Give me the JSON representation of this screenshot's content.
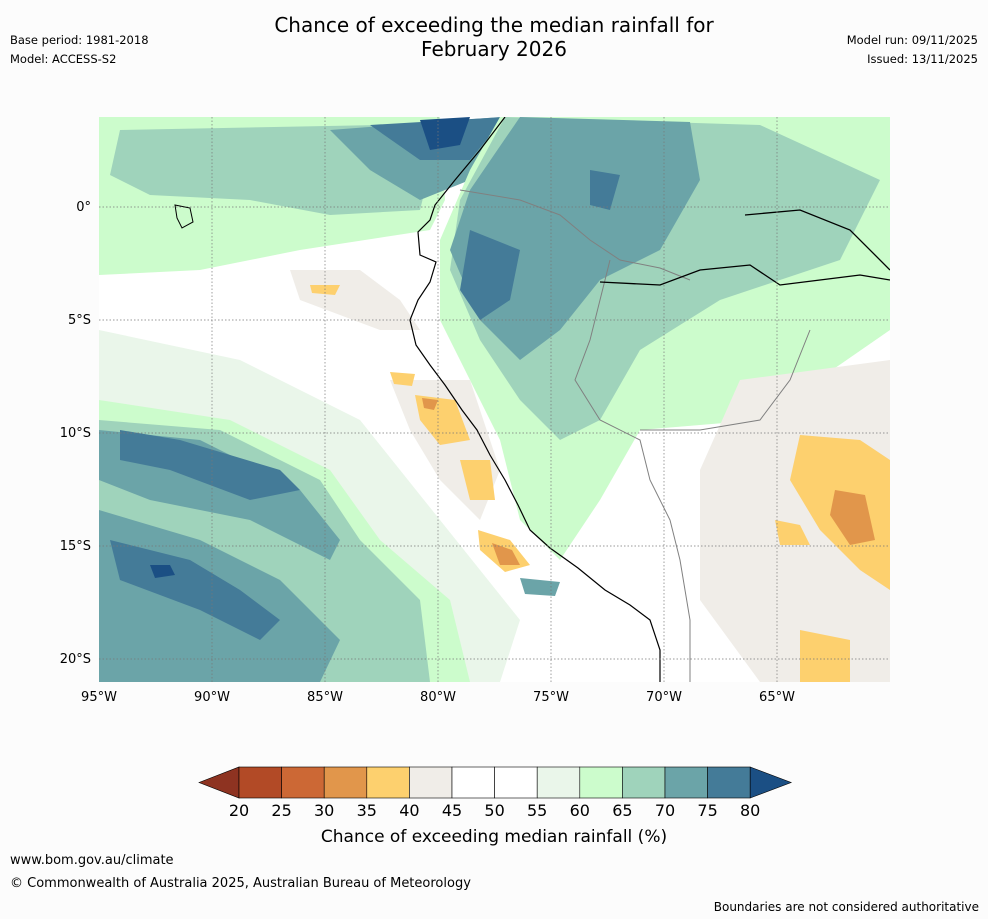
{
  "title_line1": "Chance of exceeding the median rainfall for",
  "title_line2": "February 2026",
  "meta": {
    "base_period": "Base period: 1981-2018",
    "model": "Model: ACCESS-S2",
    "model_run": "Model run: 09/11/2025",
    "issued": "Issued: 13/11/2025"
  },
  "map": {
    "lat_labels": [
      "0°",
      "5°S",
      "10°S",
      "15°S",
      "20°S"
    ],
    "lon_labels": [
      "95°W",
      "90°W",
      "85°W",
      "80°W",
      "75°W",
      "70°W",
      "65°W"
    ]
  },
  "colorbar": {
    "title": "Chance of exceeding median rainfall (%)",
    "ticks": [
      "20",
      "25",
      "30",
      "35",
      "40",
      "45",
      "50",
      "55",
      "60",
      "65",
      "70",
      "75",
      "80"
    ],
    "colors": [
      "#8e3321",
      "#b24a26",
      "#cc6835",
      "#e1964b",
      "#fdd06e",
      "#f0ede8",
      "#ffffff",
      "#ffffff",
      "#eaf6ea",
      "#ccfccc",
      "#9fd3bb",
      "#6ba4a8",
      "#447b98",
      "#1b4f84"
    ]
  },
  "footer": {
    "url": "www.bom.gov.au/climate",
    "copyright": "© Commonwealth of Australia 2025, Australian Bureau of Meteorology",
    "note": "Boundaries are not considered authoritative"
  }
}
